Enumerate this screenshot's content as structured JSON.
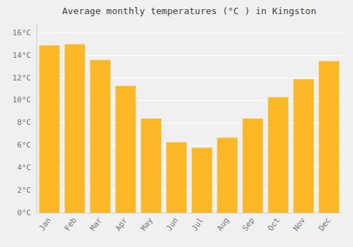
{
  "chart_data": {
    "type": "bar",
    "title": "Average monthly temperatures (°C ) in Kingston",
    "categories": [
      "Jan",
      "Feb",
      "Mar",
      "Apr",
      "May",
      "Jun",
      "Jul",
      "Aug",
      "Sep",
      "Oct",
      "Nov",
      "Dec"
    ],
    "values": [
      14.9,
      15.0,
      13.6,
      11.3,
      8.4,
      6.3,
      5.8,
      6.7,
      8.4,
      10.3,
      11.9,
      13.5
    ],
    "color": "#FDB827",
    "ylim": [
      0,
      16.8
    ],
    "yticks": [
      {
        "value": 0,
        "label": "0°C"
      },
      {
        "value": 2,
        "label": "2°C"
      },
      {
        "value": 4,
        "label": "4°C"
      },
      {
        "value": 6,
        "label": "6°C"
      },
      {
        "value": 8,
        "label": "8°C"
      },
      {
        "value": 10,
        "label": "10°C"
      },
      {
        "value": 12,
        "label": "12°C"
      },
      {
        "value": 14,
        "label": "14°C"
      },
      {
        "value": 16,
        "label": "16°C"
      }
    ],
    "grid": true
  }
}
